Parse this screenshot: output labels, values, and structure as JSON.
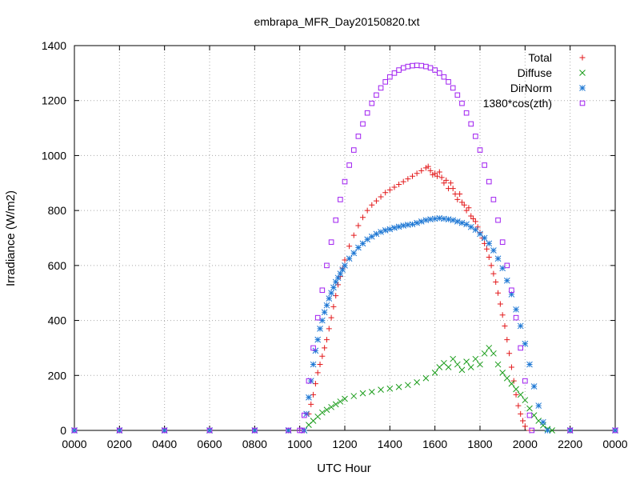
{
  "chart_data": {
    "type": "scatter",
    "title": "embrapa_MFR_Day20150820.txt",
    "xlabel": "UTC Hour",
    "ylabel": "Irradiance (W/m2)",
    "xlim": [
      0,
      24
    ],
    "ylim": [
      0,
      1400
    ],
    "x_ticks": [
      0,
      2,
      4,
      6,
      8,
      10,
      12,
      14,
      16,
      18,
      20,
      22,
      24
    ],
    "x_tick_labels": [
      "0000",
      "0200",
      "0400",
      "0600",
      "0800",
      "1000",
      "1200",
      "1400",
      "1600",
      "1800",
      "2000",
      "2200",
      "0000"
    ],
    "y_ticks": [
      0,
      200,
      400,
      600,
      800,
      1000,
      1200,
      1400
    ],
    "y_tick_labels": [
      "0",
      "200",
      "400",
      "600",
      "800",
      "1000",
      "1200",
      "1400"
    ],
    "grid": true,
    "legend_position": "top-right",
    "series": [
      {
        "name": "Total",
        "marker": "plus",
        "color": "#e31a1c",
        "points": [
          [
            0,
            0
          ],
          [
            2,
            0
          ],
          [
            4,
            0
          ],
          [
            6,
            0
          ],
          [
            8,
            0
          ],
          [
            9.5,
            0
          ],
          [
            10.2,
            0
          ],
          [
            10.4,
            60
          ],
          [
            10.5,
            95
          ],
          [
            10.6,
            130
          ],
          [
            10.7,
            170
          ],
          [
            10.8,
            210
          ],
          [
            10.9,
            240
          ],
          [
            11.0,
            270
          ],
          [
            11.1,
            300
          ],
          [
            11.2,
            330
          ],
          [
            11.3,
            370
          ],
          [
            11.4,
            410
          ],
          [
            11.5,
            450
          ],
          [
            11.6,
            490
          ],
          [
            11.7,
            530
          ],
          [
            11.8,
            560
          ],
          [
            11.9,
            590
          ],
          [
            12.0,
            620
          ],
          [
            12.2,
            670
          ],
          [
            12.4,
            710
          ],
          [
            12.6,
            745
          ],
          [
            12.8,
            775
          ],
          [
            13.0,
            800
          ],
          [
            13.2,
            820
          ],
          [
            13.4,
            835
          ],
          [
            13.6,
            850
          ],
          [
            13.8,
            865
          ],
          [
            14.0,
            875
          ],
          [
            14.2,
            885
          ],
          [
            14.4,
            895
          ],
          [
            14.6,
            905
          ],
          [
            14.8,
            915
          ],
          [
            15.0,
            925
          ],
          [
            15.2,
            935
          ],
          [
            15.4,
            945
          ],
          [
            15.6,
            955
          ],
          [
            15.7,
            960
          ],
          [
            15.8,
            945
          ],
          [
            15.9,
            930
          ],
          [
            16.0,
            935
          ],
          [
            16.1,
            925
          ],
          [
            16.2,
            940
          ],
          [
            16.3,
            920
          ],
          [
            16.4,
            900
          ],
          [
            16.5,
            910
          ],
          [
            16.6,
            880
          ],
          [
            16.7,
            900
          ],
          [
            16.8,
            880
          ],
          [
            16.9,
            860
          ],
          [
            17.0,
            840
          ],
          [
            17.1,
            860
          ],
          [
            17.2,
            830
          ],
          [
            17.3,
            820
          ],
          [
            17.4,
            800
          ],
          [
            17.5,
            810
          ],
          [
            17.6,
            780
          ],
          [
            17.7,
            770
          ],
          [
            17.8,
            760
          ],
          [
            17.9,
            740
          ],
          [
            18.0,
            720
          ],
          [
            18.1,
            700
          ],
          [
            18.2,
            680
          ],
          [
            18.3,
            660
          ],
          [
            18.4,
            630
          ],
          [
            18.5,
            600
          ],
          [
            18.6,
            570
          ],
          [
            18.7,
            540
          ],
          [
            18.8,
            500
          ],
          [
            18.9,
            460
          ],
          [
            19.0,
            420
          ],
          [
            19.1,
            380
          ],
          [
            19.2,
            330
          ],
          [
            19.3,
            280
          ],
          [
            19.4,
            230
          ],
          [
            19.5,
            180
          ],
          [
            19.6,
            130
          ],
          [
            19.7,
            90
          ],
          [
            19.8,
            60
          ],
          [
            19.9,
            35
          ],
          [
            20.0,
            15
          ],
          [
            20.2,
            0
          ],
          [
            22,
            0
          ],
          [
            24,
            0
          ]
        ]
      },
      {
        "name": "Diffuse",
        "marker": "cross",
        "color": "#1a9c1a",
        "points": [
          [
            0,
            0
          ],
          [
            2,
            0
          ],
          [
            4,
            0
          ],
          [
            6,
            0
          ],
          [
            8,
            0
          ],
          [
            9.5,
            0
          ],
          [
            10.2,
            0
          ],
          [
            10.4,
            20
          ],
          [
            10.6,
            35
          ],
          [
            10.8,
            50
          ],
          [
            11.0,
            65
          ],
          [
            11.2,
            75
          ],
          [
            11.4,
            85
          ],
          [
            11.6,
            95
          ],
          [
            11.8,
            105
          ],
          [
            12.0,
            115
          ],
          [
            12.4,
            125
          ],
          [
            12.8,
            135
          ],
          [
            13.2,
            140
          ],
          [
            13.6,
            148
          ],
          [
            14.0,
            152
          ],
          [
            14.4,
            158
          ],
          [
            14.8,
            165
          ],
          [
            15.2,
            175
          ],
          [
            15.6,
            190
          ],
          [
            16.0,
            210
          ],
          [
            16.2,
            230
          ],
          [
            16.4,
            245
          ],
          [
            16.6,
            230
          ],
          [
            16.8,
            260
          ],
          [
            17.0,
            240
          ],
          [
            17.2,
            220
          ],
          [
            17.4,
            250
          ],
          [
            17.6,
            230
          ],
          [
            17.8,
            260
          ],
          [
            18.0,
            240
          ],
          [
            18.2,
            280
          ],
          [
            18.4,
            300
          ],
          [
            18.6,
            280
          ],
          [
            18.8,
            240
          ],
          [
            19.0,
            210
          ],
          [
            19.2,
            190
          ],
          [
            19.4,
            170
          ],
          [
            19.6,
            150
          ],
          [
            19.8,
            130
          ],
          [
            20.0,
            110
          ],
          [
            20.2,
            80
          ],
          [
            20.4,
            55
          ],
          [
            20.6,
            35
          ],
          [
            20.8,
            18
          ],
          [
            21.0,
            5
          ],
          [
            21.2,
            0
          ],
          [
            22,
            0
          ],
          [
            24,
            0
          ]
        ]
      },
      {
        "name": "DirNorm",
        "marker": "star",
        "color": "#1f78d4",
        "points": [
          [
            0,
            0
          ],
          [
            2,
            0
          ],
          [
            4,
            0
          ],
          [
            6,
            0
          ],
          [
            8,
            0
          ],
          [
            9.5,
            0
          ],
          [
            10.2,
            0
          ],
          [
            10.3,
            60
          ],
          [
            10.4,
            120
          ],
          [
            10.5,
            180
          ],
          [
            10.6,
            240
          ],
          [
            10.7,
            290
          ],
          [
            10.8,
            330
          ],
          [
            10.9,
            370
          ],
          [
            11.0,
            400
          ],
          [
            11.1,
            430
          ],
          [
            11.2,
            455
          ],
          [
            11.3,
            480
          ],
          [
            11.4,
            500
          ],
          [
            11.5,
            520
          ],
          [
            11.6,
            540
          ],
          [
            11.7,
            555
          ],
          [
            11.8,
            570
          ],
          [
            11.9,
            585
          ],
          [
            12.0,
            600
          ],
          [
            12.2,
            625
          ],
          [
            12.4,
            645
          ],
          [
            12.6,
            665
          ],
          [
            12.8,
            680
          ],
          [
            13.0,
            695
          ],
          [
            13.2,
            705
          ],
          [
            13.4,
            715
          ],
          [
            13.6,
            722
          ],
          [
            13.8,
            728
          ],
          [
            14.0,
            732
          ],
          [
            14.2,
            737
          ],
          [
            14.4,
            741
          ],
          [
            14.6,
            745
          ],
          [
            14.8,
            748
          ],
          [
            15.0,
            750
          ],
          [
            15.2,
            755
          ],
          [
            15.4,
            760
          ],
          [
            15.6,
            765
          ],
          [
            15.8,
            768
          ],
          [
            16.0,
            770
          ],
          [
            16.2,
            772
          ],
          [
            16.4,
            770
          ],
          [
            16.6,
            768
          ],
          [
            16.8,
            765
          ],
          [
            17.0,
            760
          ],
          [
            17.2,
            755
          ],
          [
            17.4,
            750
          ],
          [
            17.6,
            740
          ],
          [
            17.8,
            730
          ],
          [
            18.0,
            715
          ],
          [
            18.2,
            700
          ],
          [
            18.4,
            680
          ],
          [
            18.6,
            655
          ],
          [
            18.8,
            625
          ],
          [
            19.0,
            590
          ],
          [
            19.2,
            545
          ],
          [
            19.4,
            495
          ],
          [
            19.6,
            440
          ],
          [
            19.8,
            380
          ],
          [
            20.0,
            315
          ],
          [
            20.2,
            240
          ],
          [
            20.4,
            160
          ],
          [
            20.6,
            90
          ],
          [
            20.8,
            30
          ],
          [
            21.0,
            0
          ],
          [
            22,
            0
          ],
          [
            24,
            0
          ]
        ]
      },
      {
        "name": "1380*cos(zth)",
        "marker": "square",
        "color": "#a020f0",
        "points": [
          [
            0,
            0
          ],
          [
            2,
            0
          ],
          [
            4,
            0
          ],
          [
            6,
            0
          ],
          [
            8,
            0
          ],
          [
            9.5,
            0
          ],
          [
            10.0,
            0
          ],
          [
            10.1,
            0
          ],
          [
            10.2,
            55
          ],
          [
            10.4,
            180
          ],
          [
            10.6,
            300
          ],
          [
            10.8,
            410
          ],
          [
            11.0,
            510
          ],
          [
            11.2,
            600
          ],
          [
            11.4,
            685
          ],
          [
            11.6,
            765
          ],
          [
            11.8,
            840
          ],
          [
            12.0,
            905
          ],
          [
            12.2,
            965
          ],
          [
            12.4,
            1020
          ],
          [
            12.6,
            1070
          ],
          [
            12.8,
            1115
          ],
          [
            13.0,
            1155
          ],
          [
            13.2,
            1190
          ],
          [
            13.4,
            1220
          ],
          [
            13.6,
            1246
          ],
          [
            13.8,
            1268
          ],
          [
            14.0,
            1286
          ],
          [
            14.2,
            1300
          ],
          [
            14.4,
            1311
          ],
          [
            14.6,
            1319
          ],
          [
            14.8,
            1324
          ],
          [
            15.0,
            1327
          ],
          [
            15.2,
            1328
          ],
          [
            15.4,
            1327
          ],
          [
            15.6,
            1324
          ],
          [
            15.8,
            1319
          ],
          [
            16.0,
            1311
          ],
          [
            16.2,
            1300
          ],
          [
            16.4,
            1286
          ],
          [
            16.6,
            1268
          ],
          [
            16.8,
            1246
          ],
          [
            17.0,
            1220
          ],
          [
            17.2,
            1190
          ],
          [
            17.4,
            1155
          ],
          [
            17.6,
            1115
          ],
          [
            17.8,
            1070
          ],
          [
            18.0,
            1020
          ],
          [
            18.2,
            965
          ],
          [
            18.4,
            905
          ],
          [
            18.6,
            840
          ],
          [
            18.8,
            765
          ],
          [
            19.0,
            685
          ],
          [
            19.2,
            600
          ],
          [
            19.4,
            510
          ],
          [
            19.6,
            410
          ],
          [
            19.8,
            300
          ],
          [
            20.0,
            180
          ],
          [
            20.2,
            55
          ],
          [
            20.3,
            0
          ],
          [
            22,
            0
          ],
          [
            24,
            0
          ]
        ]
      }
    ]
  }
}
